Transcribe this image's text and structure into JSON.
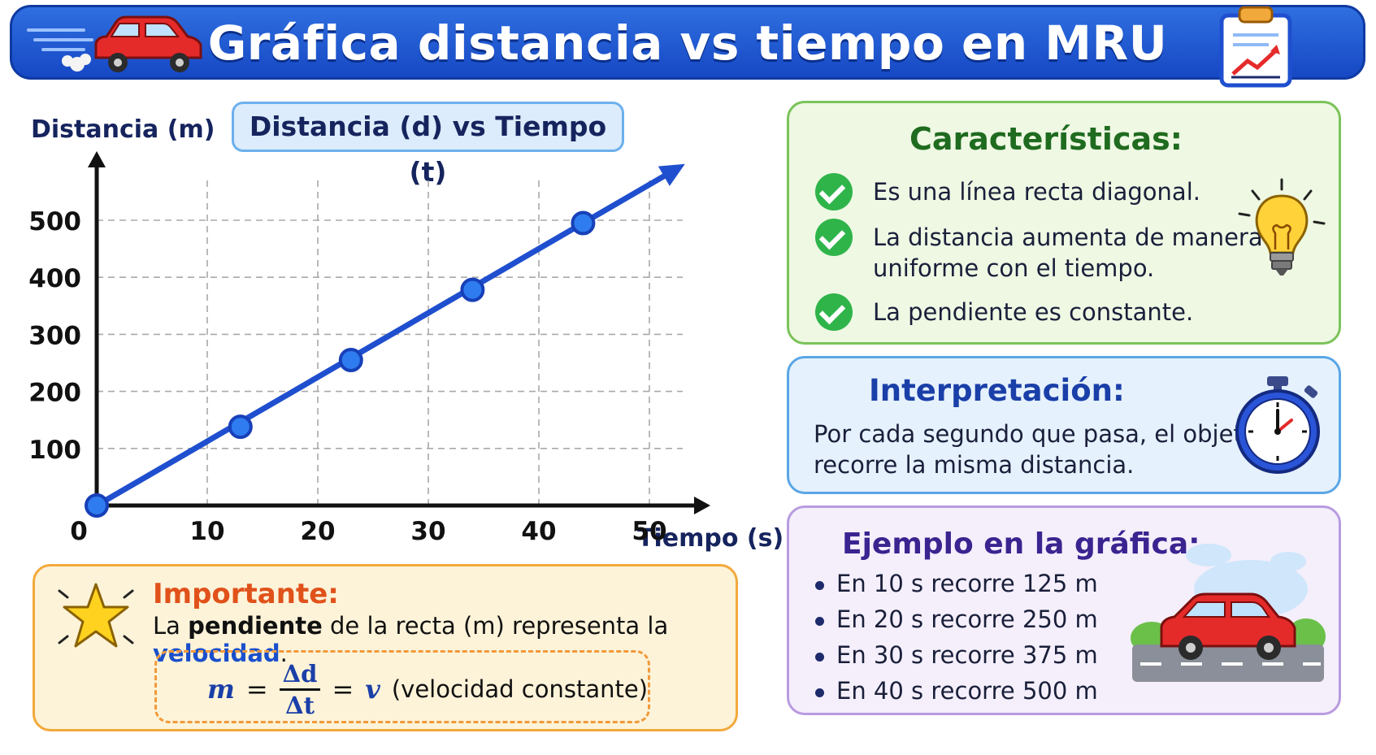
{
  "header": {
    "title": "Gráfica distancia vs tiempo en MRU",
    "colors": {
      "banner": "#1a4fcc",
      "title": "#ffffff"
    },
    "icons": [
      "car-icon",
      "chart-clipboard-icon"
    ]
  },
  "chart_data": {
    "type": "line",
    "title": "Distancia (d) vs Tiempo (t)",
    "xlabel": "Tiempo (s)",
    "ylabel": "Distancia (m)",
    "x_ticks": [
      "0",
      "10",
      "20",
      "30",
      "40",
      "50"
    ],
    "y_ticks": [
      "100",
      "200",
      "300",
      "400",
      "500"
    ],
    "xlim": [
      0,
      60
    ],
    "ylim": [
      0,
      550
    ],
    "grid": true,
    "series": [
      {
        "x": [
          0,
          13,
          23,
          34,
          44
        ],
        "y": [
          0,
          138,
          255,
          378,
          495
        ],
        "color": "#1f4fcf"
      }
    ]
  },
  "importante": {
    "title": "Importante:",
    "text_pre": "La ",
    "text_bold": "pendiente",
    "text_mid": " de la recta (m)  representa la ",
    "text_highlight": "velocidad",
    "text_end": ".",
    "formula_m": "m",
    "formula_eq": "=",
    "formula_num": "Δd",
    "formula_den": "Δt",
    "formula_eq2": "=",
    "formula_v": "v",
    "formula_note": "(velocidad constante)",
    "icon": "star-icon"
  },
  "caracteristicas": {
    "title": "Características:",
    "items": [
      "Es una línea recta diagonal.",
      "La distancia aumenta de manera",
      "uniforme con el tiempo.",
      "La pendiente es constante."
    ],
    "icon": "lightbulb-icon"
  },
  "interpretacion": {
    "title": "Interpretación:",
    "line1": "Por cada segundo que pasa, el objeto",
    "line2": "recorre la misma distancia.",
    "icon": "stopwatch-icon"
  },
  "ejemplo": {
    "title": "Ejemplo en la gráfica:",
    "items": [
      "En 10 s recorre 125 m",
      "En 20 s recorre 250 m",
      "En 30 s recorre 375 m",
      "En 40 s recorre 500 m"
    ],
    "icon": "car-road-icon"
  }
}
